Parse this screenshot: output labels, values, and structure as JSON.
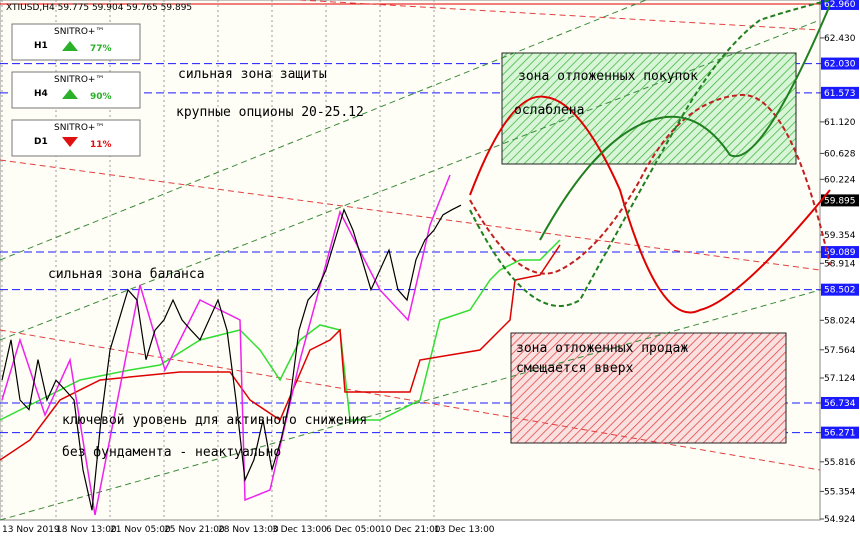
{
  "header": "XTIUSD,H4  59.775 59.904 59.765 59.895",
  "signals": [
    {
      "timeframe": "H1",
      "brand": "SNITRO+™",
      "value": "77%"
    },
    {
      "timeframe": "H4",
      "brand": "SNITRO+™",
      "value": "90%"
    },
    {
      "timeframe": "D1",
      "brand": "SNITRO+™",
      "value": "11%"
    }
  ],
  "chart_data": {
    "type": "line",
    "color": "#000000",
    "categories": [
      "13 Nov 2019",
      null,
      null,
      null,
      null,
      null,
      "18 Nov 13:00",
      null,
      null,
      null,
      null,
      null,
      "21 Nov 05:00",
      null,
      null,
      null,
      null,
      null,
      "25 Nov 21:00",
      null,
      null,
      null,
      null,
      null,
      "28 Nov 13:00",
      null,
      null,
      null,
      null,
      null,
      "3 Dec 13:00",
      null,
      null,
      null,
      null,
      null,
      "6 Dec 05:00",
      null,
      null,
      null,
      null,
      null,
      "10 Dec 21:00",
      null,
      null,
      null,
      null,
      null,
      "13 Dec 13:00",
      null,
      null,
      null
    ],
    "values": [
      57.09,
      57.72,
      56.78,
      56.63,
      57.41,
      56.78,
      57.09,
      56.94,
      56.78,
      55.69,
      55.06,
      56.47,
      57.56,
      58.03,
      58.5,
      58.34,
      57.41,
      57.87,
      58.03,
      58.34,
      58.03,
      57.87,
      57.72,
      58.03,
      58.34,
      57.87,
      56.78,
      55.53,
      55.85,
      56.47,
      55.69,
      56.16,
      56.78,
      57.87,
      58.34,
      58.5,
      58.81,
      59.28,
      59.75,
      59.43,
      58.97,
      58.5,
      58.81,
      59.12,
      58.5,
      58.34,
      58.97,
      59.28,
      59.43,
      59.67,
      59.75,
      59.82
    ],
    "ylim": [
      54.908,
      63.022
    ],
    "yticks": [
      {
        "value": 62.96,
        "label": "62.960"
      },
      {
        "value": 62.43,
        "label": "62.430"
      },
      {
        "value": 62.03,
        "label": "62.030"
      },
      {
        "value": 61.573,
        "label": "61.573"
      },
      {
        "value": 61.12,
        "label": "61.120"
      },
      {
        "value": 60.628,
        "label": "60.628"
      },
      {
        "value": 60.224,
        "label": "60.224"
      },
      {
        "value": 59.895,
        "label": "59.895"
      },
      {
        "value": 59.354,
        "label": "59.354"
      },
      {
        "value": 59.089,
        "label": "59.089"
      },
      {
        "value": 58.914,
        "label": "58.914"
      },
      {
        "value": 58.502,
        "label": "58.502"
      },
      {
        "value": 58.024,
        "label": "58.024"
      },
      {
        "value": 57.564,
        "label": "57.564"
      },
      {
        "value": 57.124,
        "label": "57.124"
      },
      {
        "value": 56.734,
        "label": "56.734"
      },
      {
        "value": 56.271,
        "label": "56.271"
      },
      {
        "value": 55.816,
        "label": "55.816"
      },
      {
        "value": 55.354,
        "label": "55.354"
      },
      {
        "value": 54.924,
        "label": "54.924"
      }
    ],
    "level_color": "#1a1aff",
    "annotations": [
      "сильная зона защиты",
      "крупные опционы 20-25.12",
      "зона отложенных покупок",
      "ослаблена",
      "сильная зона баланса",
      "зона отложенных продаж",
      "смещается вверх",
      "ключевой уровень для активного снижения",
      "без фундамента - неактуально"
    ]
  }
}
